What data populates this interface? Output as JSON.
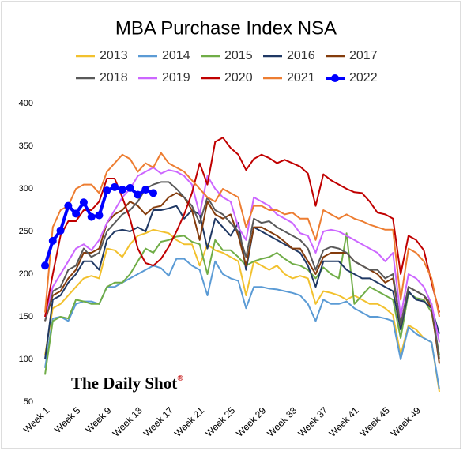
{
  "chart_data": {
    "type": "line",
    "title": "MBA Purchase Index NSA",
    "annotations": [
      "The Daily Shot",
      "®"
    ],
    "legend": "top",
    "grid": false,
    "categories": [
      "Week 1",
      null,
      null,
      null,
      "Week 5",
      null,
      null,
      null,
      "Week 9",
      null,
      null,
      null,
      "Week 13",
      null,
      null,
      null,
      "Week 17",
      null,
      null,
      null,
      "Week 21",
      null,
      null,
      null,
      "Week 25",
      null,
      null,
      null,
      "Week 29",
      null,
      null,
      null,
      "Week 33",
      null,
      null,
      null,
      "Week 37",
      null,
      null,
      null,
      "Week 41",
      null,
      null,
      null,
      "Week 45",
      null,
      null,
      null,
      "Week 49",
      null,
      null,
      null
    ],
    "ylim": [
      50,
      400
    ],
    "yticks": [
      50,
      100,
      150,
      200,
      250,
      300,
      350,
      400
    ],
    "series": [
      {
        "name": "2013",
        "color": "#f2c12e",
        "values": [
          105,
          160,
          165,
          175,
          185,
          195,
          198,
          195,
          230,
          228,
          220,
          235,
          245,
          248,
          252,
          250,
          248,
          240,
          235,
          235,
          210,
          235,
          228,
          225,
          220,
          215,
          175,
          215,
          210,
          205,
          210,
          200,
          195,
          198,
          195,
          165,
          180,
          178,
          175,
          170,
          175,
          170,
          165,
          165,
          160,
          152,
          105,
          140,
          135,
          125,
          120,
          62
        ]
      },
      {
        "name": "2014",
        "color": "#5b9bd5",
        "values": [
          90,
          148,
          150,
          145,
          165,
          168,
          168,
          165,
          185,
          185,
          190,
          195,
          200,
          205,
          210,
          207,
          198,
          218,
          218,
          210,
          205,
          175,
          215,
          200,
          195,
          192,
          160,
          185,
          185,
          183,
          182,
          180,
          178,
          175,
          165,
          145,
          170,
          165,
          165,
          168,
          160,
          155,
          150,
          150,
          148,
          145,
          100,
          138,
          130,
          125,
          120,
          65
        ]
      },
      {
        "name": "2015",
        "color": "#70ad47",
        "values": [
          82,
          145,
          150,
          148,
          170,
          168,
          165,
          165,
          185,
          190,
          190,
          200,
          215,
          230,
          225,
          238,
          240,
          244,
          245,
          238,
          235,
          200,
          240,
          228,
          228,
          220,
          210,
          215,
          218,
          220,
          225,
          218,
          212,
          210,
          205,
          195,
          208,
          200,
          195,
          248,
          165,
          175,
          185,
          180,
          175,
          170,
          125,
          178,
          172,
          170,
          155,
          105
        ]
      },
      {
        "name": "2016",
        "color": "#1f3864",
        "values": [
          100,
          170,
          175,
          190,
          200,
          215,
          215,
          205,
          240,
          250,
          252,
          250,
          255,
          250,
          275,
          275,
          277,
          280,
          265,
          275,
          270,
          230,
          265,
          255,
          245,
          260,
          205,
          255,
          250,
          245,
          240,
          235,
          230,
          225,
          210,
          185,
          215,
          215,
          215,
          205,
          200,
          195,
          195,
          190,
          185,
          180,
          135,
          180,
          170,
          168,
          160,
          130
        ]
      },
      {
        "name": "2017",
        "color": "#843c0c",
        "values": [
          145,
          175,
          180,
          195,
          205,
          225,
          225,
          230,
          260,
          270,
          275,
          285,
          280,
          270,
          278,
          280,
          290,
          295,
          290,
          275,
          240,
          285,
          270,
          265,
          270,
          245,
          210,
          255,
          255,
          250,
          245,
          238,
          230,
          230,
          215,
          200,
          220,
          225,
          225,
          225,
          215,
          210,
          205,
          200,
          190,
          195,
          140,
          185,
          180,
          175,
          160,
          95
        ]
      },
      {
        "name": "2018",
        "color": "#595959",
        "values": [
          145,
          180,
          185,
          205,
          210,
          230,
          220,
          225,
          250,
          260,
          270,
          275,
          285,
          300,
          305,
          308,
          308,
          300,
          290,
          280,
          260,
          290,
          275,
          270,
          260,
          250,
          220,
          265,
          260,
          262,
          255,
          250,
          245,
          240,
          230,
          205,
          228,
          232,
          230,
          225,
          215,
          210,
          205,
          205,
          195,
          200,
          140,
          185,
          180,
          175,
          165,
          100
        ]
      },
      {
        "name": "2019",
        "color": "#cc66ff",
        "values": [
          150,
          185,
          200,
          215,
          230,
          235,
          228,
          240,
          260,
          275,
          290,
          300,
          315,
          320,
          325,
          318,
          322,
          320,
          315,
          305,
          270,
          315,
          300,
          290,
          285,
          255,
          240,
          290,
          285,
          280,
          270,
          265,
          260,
          248,
          245,
          225,
          250,
          252,
          250,
          245,
          240,
          235,
          230,
          225,
          215,
          225,
          150,
          200,
          195,
          185,
          165,
          120
        ]
      },
      {
        "name": "2020",
        "color": "#c00000",
        "values": [
          150,
          200,
          245,
          262,
          262,
          275,
          275,
          285,
          312,
          312,
          290,
          265,
          230,
          213,
          210,
          218,
          232,
          250,
          270,
          295,
          330,
          305,
          355,
          360,
          348,
          340,
          322,
          335,
          340,
          336,
          330,
          334,
          330,
          326,
          318,
          280,
          317,
          310,
          305,
          300,
          296,
          295,
          285,
          272,
          270,
          265,
          200,
          245,
          240,
          228,
          190,
          155
        ]
      },
      {
        "name": "2021",
        "color": "#ed7d31",
        "values": [
          155,
          255,
          275,
          280,
          300,
          305,
          305,
          295,
          320,
          330,
          340,
          335,
          320,
          330,
          325,
          342,
          330,
          325,
          320,
          310,
          300,
          290,
          285,
          300,
          295,
          290,
          255,
          280,
          280,
          275,
          275,
          270,
          272,
          265,
          265,
          240,
          275,
          270,
          265,
          270,
          265,
          262,
          258,
          255,
          252,
          252,
          170,
          230,
          225,
          215,
          195,
          150
        ]
      },
      {
        "name": "2022",
        "color": "#0000ff",
        "values": [
          210,
          239,
          251,
          280,
          271,
          284,
          267,
          269,
          298,
          302,
          299,
          301,
          293,
          299,
          295,
          null,
          null,
          null,
          null,
          null,
          null,
          null,
          null,
          null,
          null,
          null,
          null,
          null,
          null,
          null,
          null,
          null,
          null,
          null,
          null,
          null,
          null,
          null,
          null,
          null,
          null,
          null,
          null,
          null,
          null,
          null,
          null,
          null,
          null,
          null,
          null,
          null
        ]
      }
    ]
  }
}
